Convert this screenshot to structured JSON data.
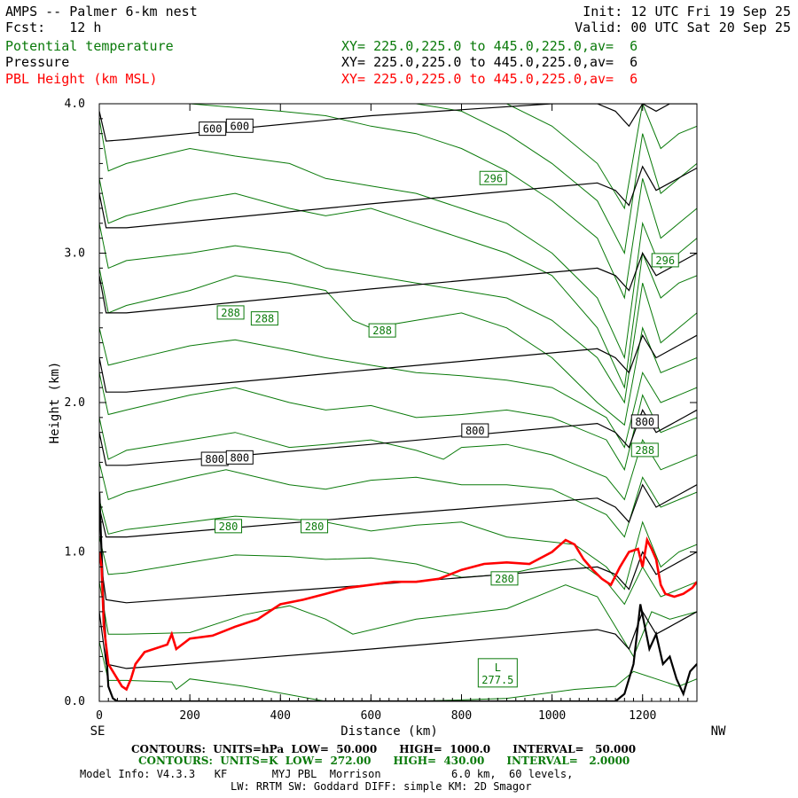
{
  "header": {
    "model": "AMPS -- Palmer 6-km nest",
    "fcst": "Fcst:   12 h",
    "init": "Init: 12 UTC Fri 19 Sep 25",
    "valid": "Valid: 00 UTC Sat 20 Sep 25",
    "fields": [
      {
        "name": "Potential temperature",
        "xy": "XY= 225.0,225.0 to 445.0,225.0,av=  6",
        "color": "#0a7a0a"
      },
      {
        "name": "Pressure",
        "xy": "XY= 225.0,225.0 to 445.0,225.0,av=  6",
        "color": "#000000"
      },
      {
        "name": "PBL Height (km MSL)",
        "xy": "XY= 225.0,225.0 to 445.0,225.0,av=  6",
        "color": "#ff0000"
      }
    ]
  },
  "chart_data": {
    "type": "line",
    "title": "AMPS -- Palmer 6-km nest",
    "xlabel": "Distance (km)",
    "ylabel": "Height (km)",
    "xlim": [
      0,
      1320
    ],
    "ylim": [
      0,
      4.0
    ],
    "x_ticks": [
      0,
      200,
      400,
      600,
      800,
      1000,
      1200
    ],
    "y_ticks": [
      0.0,
      1.0,
      2.0,
      3.0,
      4.0
    ],
    "x_tick_labels": [
      "0",
      "200",
      "400",
      "600",
      "800",
      "1000",
      "1200"
    ],
    "y_tick_labels": [
      "0.0",
      "1.0",
      "2.0",
      "3.0",
      "4.0"
    ],
    "left_end_label": "SE",
    "right_end_label": "NW",
    "terrain": {
      "x": [
        0,
        10,
        20,
        30,
        40,
        60,
        80,
        100,
        1140,
        1160,
        1180,
        1195,
        1205,
        1215,
        1230,
        1245,
        1260,
        1275,
        1290,
        1305,
        1320
      ],
      "y": [
        1.4,
        0.6,
        0.1,
        0.02,
        0.0,
        0.0,
        0.0,
        0.0,
        0.0,
        0.05,
        0.25,
        0.65,
        0.5,
        0.35,
        0.45,
        0.25,
        0.3,
        0.15,
        0.05,
        0.2,
        0.25
      ]
    },
    "pressure_series": [
      {
        "name": "isobar",
        "x": [
          0,
          15,
          60,
          600,
          1100,
          1140,
          1170,
          1200,
          1230,
          1260,
          1290,
          1320
        ],
        "y": [
          0.6,
          0.25,
          0.22,
          0.35,
          0.48,
          0.45,
          0.35,
          0.6,
          0.45,
          0.5,
          0.55,
          0.6
        ]
      },
      {
        "name": "isobar",
        "x": [
          0,
          15,
          60,
          600,
          1100,
          1140,
          1170,
          1200,
          1230,
          1260,
          1290,
          1320
        ],
        "y": [
          1.0,
          0.68,
          0.66,
          0.78,
          0.9,
          0.85,
          0.75,
          1.0,
          0.85,
          0.9,
          0.95,
          1.0
        ]
      },
      {
        "name": "isobar",
        "x": [
          0,
          15,
          60,
          600,
          1100,
          1140,
          1170,
          1200,
          1230,
          1260,
          1290,
          1320
        ],
        "y": [
          1.3,
          1.1,
          1.1,
          1.24,
          1.36,
          1.3,
          1.2,
          1.45,
          1.3,
          1.35,
          1.4,
          1.45
        ]
      },
      {
        "name": "800",
        "x": [
          0,
          15,
          60,
          600,
          1100,
          1140,
          1170,
          1200,
          1230,
          1260,
          1290,
          1320
        ],
        "y": [
          1.8,
          1.58,
          1.58,
          1.72,
          1.86,
          1.8,
          1.7,
          1.95,
          1.8,
          1.85,
          1.9,
          1.95
        ]
      },
      {
        "name": "isobar",
        "x": [
          0,
          15,
          60,
          600,
          1100,
          1140,
          1170,
          1200,
          1230,
          1260,
          1290,
          1320
        ],
        "y": [
          2.3,
          2.07,
          2.07,
          2.22,
          2.36,
          2.3,
          2.2,
          2.45,
          2.3,
          2.35,
          2.4,
          2.45
        ]
      },
      {
        "name": "isobar",
        "x": [
          0,
          15,
          60,
          600,
          1100,
          1140,
          1170,
          1200,
          1230,
          1260,
          1290,
          1320
        ],
        "y": [
          2.85,
          2.6,
          2.6,
          2.76,
          2.9,
          2.85,
          2.75,
          3.0,
          2.85,
          2.9,
          2.95,
          3.0
        ]
      },
      {
        "name": "isobar",
        "x": [
          0,
          15,
          60,
          600,
          1100,
          1140,
          1170,
          1200,
          1230,
          1260,
          1290,
          1320
        ],
        "y": [
          3.4,
          3.17,
          3.17,
          3.33,
          3.47,
          3.42,
          3.32,
          3.58,
          3.42,
          3.47,
          3.52,
          3.57
        ]
      },
      {
        "name": "600",
        "x": [
          0,
          15,
          60,
          600,
          1000,
          1100,
          1140,
          1170,
          1200,
          1230,
          1260,
          1290,
          1320
        ],
        "y": [
          3.95,
          3.75,
          3.76,
          3.92,
          4.0,
          4.0,
          3.95,
          3.85,
          4.0,
          3.95,
          4.0,
          4.0,
          4.0
        ]
      }
    ],
    "theta_series": [
      {
        "name": "theta",
        "x": [
          0,
          20,
          60,
          160,
          170,
          200,
          320,
          500,
          700,
          900,
          1050,
          1140,
          1180,
          1230,
          1280,
          1320
        ],
        "y": [
          0.4,
          0.14,
          0.14,
          0.13,
          0.08,
          0.15,
          0.1,
          0.0,
          0.0,
          0.02,
          0.08,
          0.1,
          0.2,
          0.15,
          0.1,
          0.15
        ]
      },
      {
        "name": "theta",
        "x": [
          0,
          20,
          60,
          200,
          320,
          420,
          500,
          560,
          700,
          900,
          1030,
          1100,
          1140,
          1180,
          1220,
          1260,
          1320
        ],
        "y": [
          0.8,
          0.45,
          0.45,
          0.46,
          0.58,
          0.64,
          0.55,
          0.45,
          0.55,
          0.62,
          0.78,
          0.7,
          0.5,
          0.3,
          0.6,
          0.55,
          0.6
        ]
      },
      {
        "name": "theta",
        "x": [
          0,
          20,
          60,
          200,
          300,
          420,
          500,
          600,
          700,
          800,
          900,
          1050,
          1120,
          1160,
          1200,
          1240,
          1280,
          1320
        ],
        "y": [
          1.1,
          0.85,
          0.86,
          0.93,
          0.98,
          0.97,
          0.95,
          0.96,
          0.92,
          0.83,
          0.85,
          0.95,
          0.8,
          0.65,
          0.9,
          0.7,
          0.75,
          0.8
        ]
      },
      {
        "name": "280",
        "x": [
          0,
          20,
          60,
          200,
          300,
          420,
          500,
          600,
          700,
          800,
          900,
          1050,
          1120,
          1160,
          1200,
          1240,
          1280,
          1320
        ],
        "y": [
          1.35,
          1.12,
          1.15,
          1.2,
          1.24,
          1.22,
          1.2,
          1.14,
          1.18,
          1.2,
          1.1,
          1.05,
          0.9,
          0.75,
          1.2,
          0.9,
          1.0,
          1.05
        ]
      },
      {
        "name": "theta",
        "x": [
          0,
          20,
          60,
          200,
          280,
          420,
          500,
          600,
          700,
          800,
          900,
          1000,
          1120,
          1160,
          1200,
          1240,
          1280,
          1320
        ],
        "y": [
          1.6,
          1.35,
          1.4,
          1.5,
          1.55,
          1.45,
          1.42,
          1.48,
          1.5,
          1.45,
          1.45,
          1.42,
          1.25,
          1.1,
          1.5,
          1.3,
          1.35,
          1.4
        ]
      },
      {
        "name": "theta",
        "x": [
          0,
          20,
          60,
          200,
          300,
          420,
          500,
          600,
          700,
          760,
          800,
          900,
          1000,
          1120,
          1160,
          1200,
          1240,
          1280,
          1320
        ],
        "y": [
          1.9,
          1.62,
          1.68,
          1.75,
          1.8,
          1.7,
          1.72,
          1.75,
          1.68,
          1.62,
          1.7,
          1.72,
          1.65,
          1.5,
          1.35,
          1.75,
          1.55,
          1.6,
          1.65
        ]
      },
      {
        "name": "theta",
        "x": [
          0,
          20,
          60,
          200,
          300,
          420,
          500,
          600,
          700,
          800,
          900,
          1000,
          1120,
          1160,
          1200,
          1240,
          1280,
          1320
        ],
        "y": [
          2.2,
          1.92,
          1.95,
          2.05,
          2.1,
          2.0,
          1.95,
          1.98,
          1.9,
          1.92,
          1.95,
          1.9,
          1.75,
          1.55,
          2.05,
          1.8,
          1.85,
          1.9
        ]
      },
      {
        "name": "288",
        "x": [
          0,
          20,
          60,
          200,
          300,
          420,
          500,
          600,
          700,
          800,
          900,
          1000,
          1120,
          1160,
          1200,
          1240,
          1280,
          1320
        ],
        "y": [
          2.5,
          2.25,
          2.28,
          2.38,
          2.42,
          2.35,
          2.3,
          2.25,
          2.2,
          2.18,
          2.15,
          2.1,
          1.9,
          1.7,
          2.2,
          2.0,
          2.05,
          2.1
        ]
      },
      {
        "name": "theta",
        "x": [
          0,
          20,
          60,
          200,
          300,
          420,
          500,
          560,
          600,
          700,
          800,
          900,
          1000,
          1100,
          1160,
          1200,
          1240,
          1280,
          1320
        ],
        "y": [
          2.9,
          2.6,
          2.65,
          2.75,
          2.85,
          2.8,
          2.75,
          2.55,
          2.5,
          2.55,
          2.6,
          2.5,
          2.3,
          2.0,
          1.85,
          2.5,
          2.2,
          2.25,
          2.3
        ]
      },
      {
        "name": "theta",
        "x": [
          0,
          20,
          60,
          200,
          300,
          420,
          500,
          600,
          700,
          800,
          900,
          1000,
          1100,
          1160,
          1200,
          1240,
          1280,
          1320
        ],
        "y": [
          3.2,
          2.9,
          2.95,
          3.0,
          3.05,
          3.0,
          2.9,
          2.85,
          2.8,
          2.75,
          2.7,
          2.55,
          2.3,
          2.0,
          2.8,
          2.4,
          2.5,
          2.6
        ]
      },
      {
        "name": "theta",
        "x": [
          0,
          20,
          60,
          200,
          300,
          420,
          500,
          600,
          700,
          800,
          900,
          1000,
          1100,
          1160,
          1200,
          1240,
          1280,
          1320
        ],
        "y": [
          3.5,
          3.2,
          3.25,
          3.35,
          3.4,
          3.3,
          3.25,
          3.3,
          3.2,
          3.1,
          3.0,
          2.85,
          2.5,
          2.1,
          3.0,
          2.7,
          2.8,
          2.85
        ]
      },
      {
        "name": "theta",
        "x": [
          0,
          20,
          60,
          200,
          300,
          420,
          500,
          600,
          700,
          800,
          900,
          1000,
          1100,
          1160,
          1200,
          1240,
          1280,
          1320
        ],
        "y": [
          3.9,
          3.55,
          3.6,
          3.7,
          3.65,
          3.6,
          3.5,
          3.45,
          3.4,
          3.3,
          3.2,
          3.0,
          2.7,
          2.3,
          3.2,
          2.9,
          3.0,
          3.1
        ]
      },
      {
        "name": "296",
        "x": [
          130,
          200,
          400,
          500,
          600,
          700,
          800,
          900,
          1000,
          1100,
          1160,
          1200,
          1240,
          1280,
          1320
        ],
        "y": [
          4.0,
          4.0,
          3.95,
          3.92,
          3.85,
          3.8,
          3.7,
          3.55,
          3.35,
          3.1,
          2.7,
          3.5,
          3.1,
          3.2,
          3.3
        ]
      },
      {
        "name": "theta",
        "x": [
          700,
          800,
          900,
          1000,
          1100,
          1160,
          1200,
          1240,
          1280,
          1320
        ],
        "y": [
          4.0,
          3.95,
          3.8,
          3.6,
          3.35,
          3.0,
          3.8,
          3.4,
          3.5,
          3.6
        ]
      },
      {
        "name": "theta",
        "x": [
          900,
          1000,
          1100,
          1160,
          1200,
          1240,
          1280,
          1320
        ],
        "y": [
          4.0,
          3.85,
          3.6,
          3.3,
          4.0,
          3.7,
          3.8,
          3.85
        ]
      }
    ],
    "pbl_height": {
      "name": "PBL Height (km MSL)",
      "x": [
        0,
        5,
        10,
        20,
        30,
        40,
        50,
        60,
        70,
        80,
        100,
        150,
        160,
        170,
        200,
        250,
        300,
        350,
        400,
        450,
        500,
        550,
        600,
        650,
        700,
        750,
        800,
        850,
        900,
        950,
        1000,
        1030,
        1050,
        1070,
        1090,
        1110,
        1130,
        1150,
        1170,
        1190,
        1200,
        1210,
        1220,
        1230,
        1240,
        1250,
        1270,
        1290,
        1310,
        1320
      ],
      "y": [
        1.0,
        0.9,
        0.5,
        0.25,
        0.2,
        0.15,
        0.1,
        0.08,
        0.15,
        0.25,
        0.33,
        0.38,
        0.45,
        0.35,
        0.42,
        0.44,
        0.5,
        0.55,
        0.65,
        0.68,
        0.72,
        0.76,
        0.78,
        0.8,
        0.8,
        0.82,
        0.88,
        0.92,
        0.93,
        0.92,
        1.0,
        1.08,
        1.05,
        0.95,
        0.88,
        0.82,
        0.78,
        0.9,
        1.0,
        1.02,
        0.9,
        1.08,
        1.02,
        0.95,
        0.78,
        0.72,
        0.7,
        0.72,
        0.76,
        0.8
      ]
    },
    "contour_labels": [
      {
        "text": "600",
        "x": 250,
        "y": 3.83,
        "color": "#000000"
      },
      {
        "text": "600",
        "x": 310,
        "y": 3.85,
        "color": "#000000"
      },
      {
        "text": "800",
        "x": 255,
        "y": 1.62,
        "color": "#000000"
      },
      {
        "text": "800",
        "x": 310,
        "y": 1.63,
        "color": "#000000"
      },
      {
        "text": "800",
        "x": 830,
        "y": 1.81,
        "color": "#000000"
      },
      {
        "text": "800",
        "x": 1205,
        "y": 1.87,
        "color": "#000000"
      },
      {
        "text": "296",
        "x": 870,
        "y": 3.5,
        "color": "#0a7a0a"
      },
      {
        "text": "296",
        "x": 1250,
        "y": 2.95,
        "color": "#0a7a0a"
      },
      {
        "text": "288",
        "x": 290,
        "y": 2.6,
        "color": "#0a7a0a"
      },
      {
        "text": "288",
        "x": 365,
        "y": 2.56,
        "color": "#0a7a0a"
      },
      {
        "text": "288",
        "x": 625,
        "y": 2.48,
        "color": "#0a7a0a"
      },
      {
        "text": "288",
        "x": 1205,
        "y": 1.68,
        "color": "#0a7a0a"
      },
      {
        "text": "280",
        "x": 285,
        "y": 1.17,
        "color": "#0a7a0a"
      },
      {
        "text": "280",
        "x": 475,
        "y": 1.17,
        "color": "#0a7a0a"
      },
      {
        "text": "280",
        "x": 895,
        "y": 0.82,
        "color": "#0a7a0a"
      }
    ],
    "low_marker": {
      "letter": "L",
      "value": "277.5",
      "x": 880,
      "y": 0.09
    }
  },
  "footer": {
    "pressure_contours": "CONTOURS:  UNITS=hPa  LOW=  50.000      HIGH=  1000.0      INTERVAL=   50.000",
    "theta_contours": "CONTOURS:  UNITS=K  LOW=  272.00      HIGH=  430.00      INTERVAL=   2.0000",
    "model_info": "Model Info: V4.3.3   KF       MYJ PBL  Morrison           6.0 km,  60 levels,",
    "physics": "LW: RRTM SW: Goddard DIFF: simple KM: 2D Smagor"
  },
  "colors": {
    "pressure": "#000000",
    "theta": "#0a7a0a",
    "pbl": "#ff0000",
    "terrain": "#000000"
  }
}
